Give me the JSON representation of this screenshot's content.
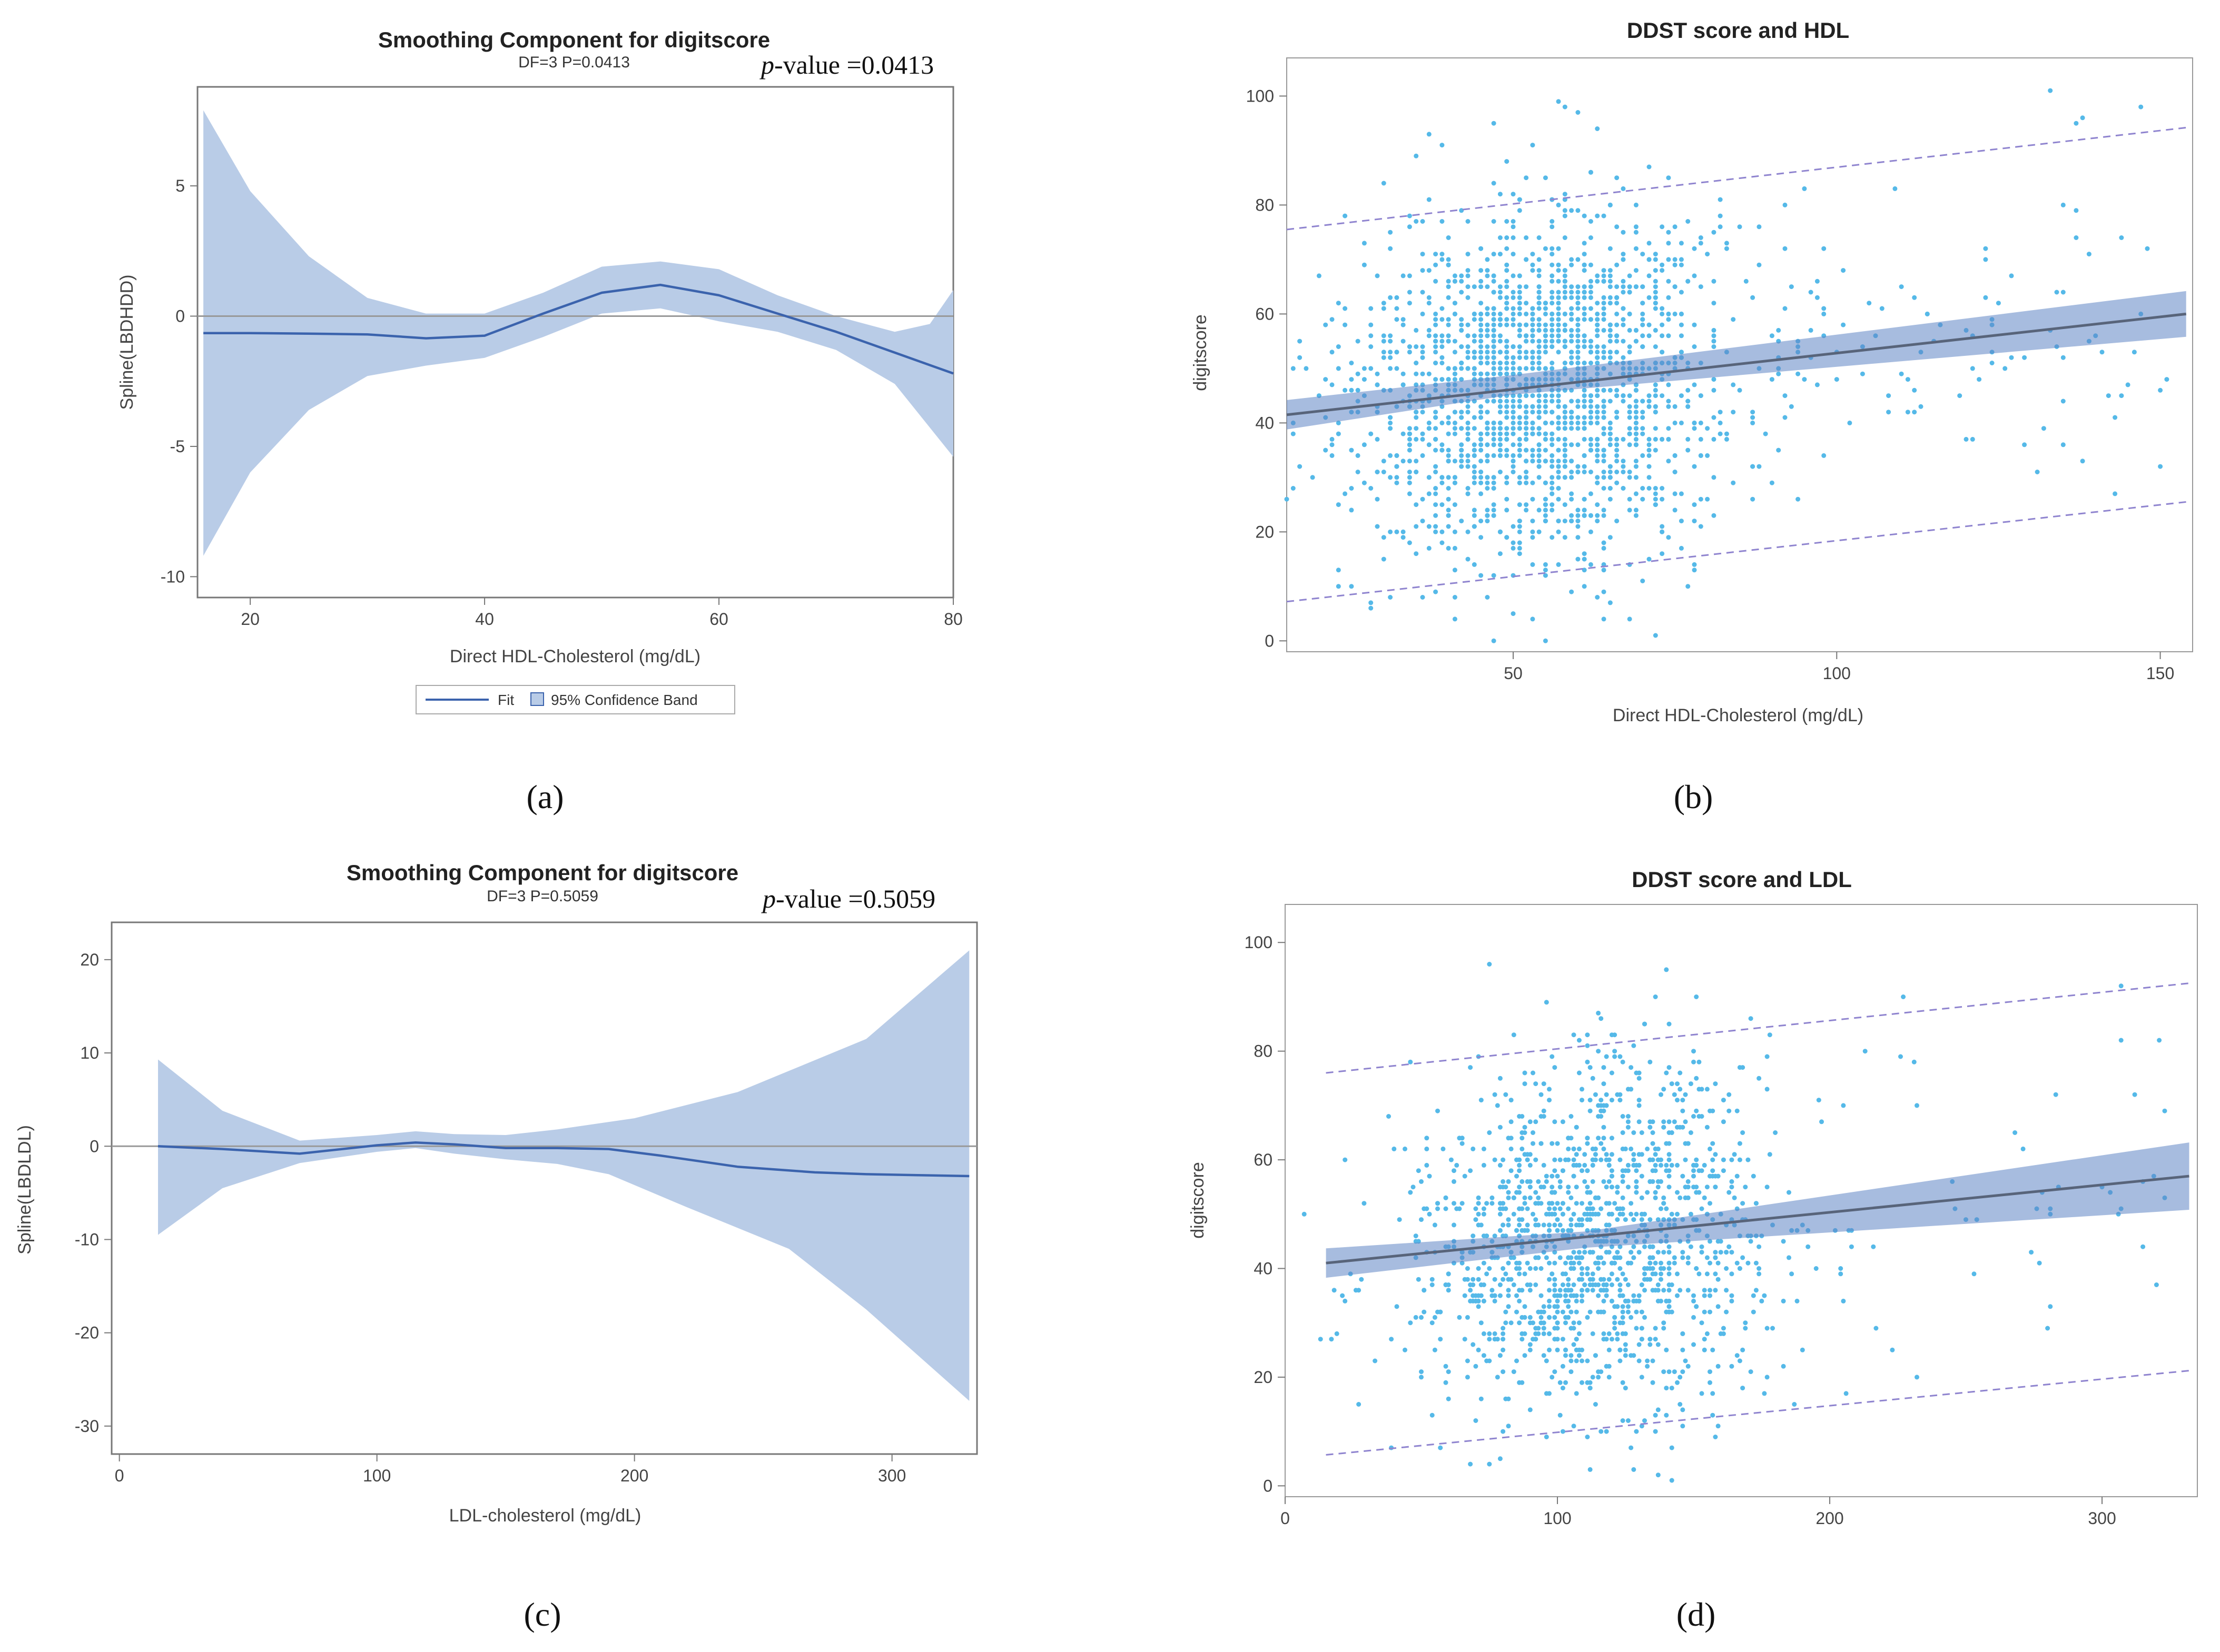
{
  "chart_data": [
    {
      "panel": "(a)",
      "type": "line",
      "title": "Smoothing Component for digitscore",
      "subtitle": "DF=3   P=0.0413",
      "pvalue_label": "p-value",
      "pvalue_text": " =0.0413",
      "xlabel": "Direct HDL-Cholesterol (mg/dL)",
      "ylabel": "Spline(LBDHDD)",
      "xlim": [
        15.5,
        80
      ],
      "ylim": [
        -10.8,
        8.8
      ],
      "xticks": [
        20,
        40,
        60,
        80
      ],
      "yticks": [
        -10,
        -5,
        0,
        5
      ],
      "fit": {
        "x": [
          16,
          20,
          25,
          30,
          35,
          40,
          45,
          50,
          55,
          60,
          65,
          70,
          75,
          80
        ],
        "y": [
          -0.65,
          -0.65,
          -0.67,
          -0.7,
          -0.85,
          -0.75,
          0.1,
          0.9,
          1.2,
          0.8,
          0.1,
          -0.6,
          -1.4,
          -2.2
        ]
      },
      "band_upper": {
        "x": [
          16,
          20,
          25,
          30,
          35,
          40,
          45,
          50,
          55,
          60,
          65,
          70,
          75,
          78,
          80
        ],
        "y": [
          7.9,
          4.8,
          2.3,
          0.7,
          0.1,
          0.1,
          0.9,
          1.9,
          2.1,
          1.8,
          0.8,
          0.0,
          -0.6,
          -0.3,
          1.0
        ]
      },
      "band_lower": {
        "x": [
          16,
          20,
          25,
          30,
          35,
          40,
          45,
          50,
          55,
          60,
          65,
          70,
          75,
          80
        ],
        "y": [
          -9.2,
          -6.0,
          -3.6,
          -2.3,
          -1.9,
          -1.6,
          -0.8,
          0.1,
          0.3,
          -0.2,
          -0.6,
          -1.3,
          -2.6,
          -5.4
        ]
      },
      "legend": {
        "fit": "Fit",
        "band": "95% Confidence Band"
      }
    },
    {
      "panel": "(b)",
      "type": "scatter",
      "title": "DDST score and HDL",
      "xlabel": "Direct HDL-Cholesterol (mg/dL)",
      "ylabel": "digitscore",
      "xlim": [
        15,
        155
      ],
      "ylim": [
        -2,
        107
      ],
      "xticks": [
        50,
        100,
        150
      ],
      "yticks": [
        0,
        20,
        40,
        60,
        80,
        100
      ],
      "fit_line": [
        [
          15,
          41.5
        ],
        [
          154,
          60
        ]
      ],
      "ci_upper": [
        [
          15,
          44.2
        ],
        [
          50,
          48.8
        ],
        [
          154,
          64.2
        ]
      ],
      "ci_lower": [
        [
          15,
          38.8
        ],
        [
          50,
          45.2
        ],
        [
          154,
          55.8
        ]
      ],
      "pred_upper": [
        [
          15,
          75.5
        ],
        [
          154,
          94.2
        ]
      ],
      "pred_lower": [
        [
          15,
          7.2
        ],
        [
          154,
          25.5
        ]
      ],
      "points_desc": "approx. 2000 participants, x mostly 30-90, y 0-100"
    },
    {
      "panel": "(c)",
      "type": "line",
      "title": "Smoothing Component for digitscore",
      "subtitle": "DF=3   P=0.5059",
      "pvalue_label": "p-value",
      "pvalue_text": " =0.5059",
      "xlabel": "LDL-cholesterol (mg/dL)",
      "ylabel": "Spline(LBDLDL)",
      "xlim": [
        -3,
        333
      ],
      "ylim": [
        -33,
        24
      ],
      "xticks": [
        0,
        100,
        200,
        300
      ],
      "yticks": [
        -30,
        -20,
        -10,
        0,
        10,
        20
      ],
      "fit": {
        "x": [
          15,
          40,
          70,
          100,
          115,
          130,
          150,
          170,
          190,
          210,
          240,
          270,
          290,
          310,
          330
        ],
        "y": [
          0,
          -0.3,
          -0.8,
          0.1,
          0.4,
          0.2,
          -0.2,
          -0.2,
          -0.3,
          -1.0,
          -2.2,
          -2.8,
          -3.0,
          -3.1,
          -3.2
        ]
      },
      "band_upper": {
        "x": [
          15,
          40,
          70,
          100,
          115,
          130,
          150,
          170,
          200,
          240,
          290,
          330
        ],
        "y": [
          9.3,
          3.8,
          0.6,
          1.2,
          1.6,
          1.3,
          1.2,
          1.8,
          3.0,
          5.8,
          11.5,
          21.0
        ]
      },
      "band_lower": {
        "x": [
          15,
          40,
          70,
          100,
          115,
          130,
          150,
          170,
          190,
          220,
          260,
          290,
          330
        ],
        "y": [
          -9.5,
          -4.5,
          -1.8,
          -0.6,
          -0.2,
          -0.8,
          -1.4,
          -1.9,
          -3.0,
          -6.5,
          -11.0,
          -17.5,
          -27.3
        ]
      }
    },
    {
      "panel": "(d)",
      "type": "scatter",
      "title": "DDST score and LDL",
      "xlabel": "",
      "ylabel": "digitscore",
      "xlim": [
        0,
        335
      ],
      "ylim": [
        -2,
        107
      ],
      "xticks": [
        0,
        100,
        200,
        300
      ],
      "yticks": [
        0,
        20,
        40,
        60,
        80,
        100
      ],
      "fit_line": [
        [
          15,
          41
        ],
        [
          332,
          57
        ]
      ],
      "ci_upper": [
        [
          15,
          43.7
        ],
        [
          110,
          46.8
        ],
        [
          332,
          63.2
        ]
      ],
      "ci_lower": [
        [
          15,
          38.3
        ],
        [
          110,
          43.8
        ],
        [
          332,
          50.8
        ]
      ],
      "pred_upper": [
        [
          15,
          76
        ],
        [
          332,
          92.5
        ]
      ],
      "pred_lower": [
        [
          15,
          5.7
        ],
        [
          332,
          21.2
        ]
      ],
      "points_desc": "approx. 1500 participants, x mostly 60-180, y 0-100"
    }
  ]
}
